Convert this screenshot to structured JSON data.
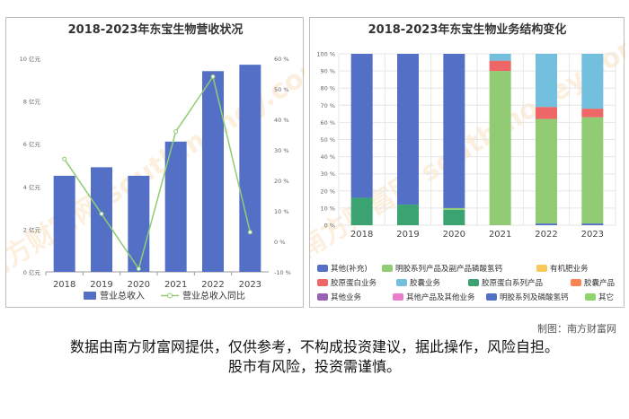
{
  "credit": "制图：南方财富网",
  "disclaimer": {
    "line1": "数据由南方财富网提供，仅供参考，不构成投资建议，据此操作，风险自担。",
    "line2": "股市有风险，投资需谨慎。"
  },
  "watermark": "南方财富网 southmoney.com",
  "colors": {
    "blue": "#5470c6",
    "green": "#91cc75",
    "yellow": "#fac858",
    "red": "#ee6666",
    "lightblue": "#73c0de",
    "darkgreen": "#3ba272",
    "orange": "#fc8452",
    "purple": "#9a60b4",
    "pink": "#ea7ccc",
    "lightgreen": "#8fd46a"
  },
  "chart_data": [
    {
      "type": "bar",
      "title": "2018-2023年东宝生物营收状况",
      "categories": [
        "2018",
        "2019",
        "2020",
        "2021",
        "2022",
        "2023"
      ],
      "series": [
        {
          "name": "营业总收入",
          "kind": "bar",
          "axis": "left",
          "values": [
            4.5,
            4.9,
            4.5,
            6.1,
            9.4,
            9.7
          ]
        },
        {
          "name": "营业总收入同比",
          "kind": "line",
          "axis": "right",
          "values": [
            27,
            9,
            -9,
            36,
            54,
            3
          ]
        }
      ],
      "y_left": {
        "ylim": [
          0,
          10
        ],
        "ticks": [
          0,
          2,
          4,
          6,
          8,
          10
        ],
        "unit": "亿元"
      },
      "y_right": {
        "ylim": [
          -10,
          60
        ],
        "ticks": [
          -10,
          0,
          10,
          20,
          30,
          40,
          50,
          60
        ],
        "unit": "%"
      },
      "grid": false,
      "legend_position": "bottom"
    },
    {
      "type": "bar",
      "stacked": "percent",
      "title": "2018-2023年东宝生物业务结构变化",
      "categories": [
        "2018",
        "2019",
        "2020",
        "2021",
        "2022",
        "2023"
      ],
      "y_ticks": [
        0,
        10,
        20,
        30,
        40,
        50,
        60,
        70,
        80,
        90,
        100
      ],
      "y_unit": "%",
      "series": [
        {
          "name": "胶原蛋白系列产品",
          "color_key": "darkgreen",
          "values": [
            16,
            12,
            9,
            0,
            0,
            0
          ]
        },
        {
          "name": "其它",
          "color_key": "lightgreen",
          "values": [
            0,
            0,
            0,
            0,
            0,
            0
          ]
        },
        {
          "name": "明胶系列及磷酸氢钙",
          "color_key": "blue",
          "values": [
            0,
            0,
            0,
            0,
            1,
            1
          ]
        },
        {
          "name": "明胶系列产品及副产品磷酸氢钙",
          "color_key": "green",
          "values": [
            0,
            0,
            1,
            90,
            61,
            62
          ]
        },
        {
          "name": "有机肥业务",
          "color_key": "yellow",
          "values": [
            0,
            0,
            0,
            0,
            0,
            0
          ]
        },
        {
          "name": "胶原蛋白业务",
          "color_key": "red",
          "values": [
            0,
            0,
            0,
            6,
            7,
            5
          ]
        },
        {
          "name": "胶囊业务",
          "color_key": "lightblue",
          "values": [
            0,
            0,
            0,
            4,
            31,
            32
          ]
        },
        {
          "name": "胶囊产品",
          "color_key": "orange",
          "values": [
            0,
            0,
            0,
            0,
            0,
            0
          ]
        },
        {
          "name": "其他业务",
          "color_key": "purple",
          "values": [
            0,
            0,
            0,
            0,
            0,
            0
          ]
        },
        {
          "name": "其他产品及其他业务",
          "color_key": "pink",
          "values": [
            0,
            0,
            0,
            0,
            0,
            0
          ]
        },
        {
          "name": "其他(补充)",
          "color_key": "blue",
          "values": [
            84,
            88,
            90,
            0,
            0,
            0
          ]
        }
      ],
      "legend": [
        {
          "name": "其他(补充)",
          "color_key": "blue"
        },
        {
          "name": "明胶系列产品及副产品磷酸氢钙",
          "color_key": "green"
        },
        {
          "name": "有机肥业务",
          "color_key": "yellow"
        },
        {
          "name": "胶原蛋白业务",
          "color_key": "red"
        },
        {
          "name": "胶囊业务",
          "color_key": "lightblue"
        },
        {
          "name": "胶原蛋白系列产品",
          "color_key": "darkgreen"
        },
        {
          "name": "胶囊产品",
          "color_key": "orange"
        },
        {
          "name": "其他业务",
          "color_key": "purple"
        },
        {
          "name": "其他产品及其他业务",
          "color_key": "pink"
        },
        {
          "name": "明胶系列及磷酸氢钙",
          "color_key": "blue"
        },
        {
          "name": "其它",
          "color_key": "lightgreen"
        }
      ],
      "grid": true,
      "legend_position": "bottom"
    }
  ]
}
